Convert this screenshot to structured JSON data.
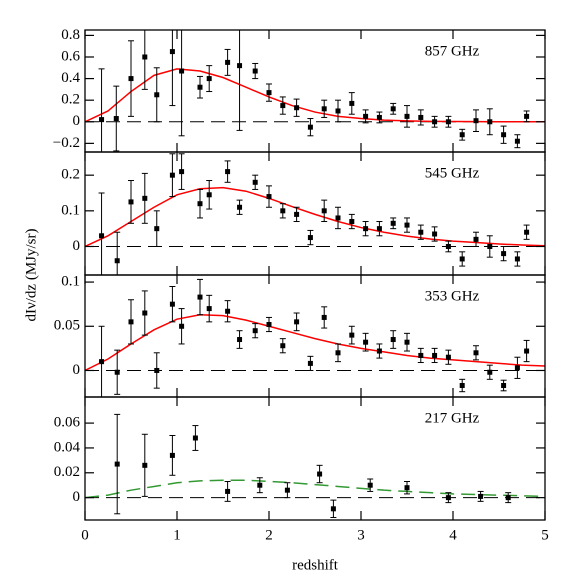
{
  "xlabel": "redshift",
  "ylabel": "dIν/dz (MJy/sr)",
  "chart_data": [
    {
      "type": "scatter",
      "label": "857 GHz",
      "xlim": [
        0,
        5
      ],
      "xticks": [
        0,
        1,
        2,
        3,
        4,
        5
      ],
      "ylim": [
        -0.28,
        0.85
      ],
      "yticks": [
        {
          "value": -0.2,
          "label": "−0.2"
        },
        0,
        0.2,
        0.4,
        0.6,
        0.8
      ],
      "points": {
        "color": "#000000",
        "x": [
          0.18,
          0.34,
          0.5,
          0.65,
          0.78,
          0.95,
          1.05,
          1.25,
          1.35,
          1.55,
          1.68,
          1.85,
          2.0,
          2.15,
          2.3,
          2.45,
          2.6,
          2.75,
          2.9,
          3.05,
          3.2,
          3.35,
          3.5,
          3.65,
          3.8,
          3.95,
          4.1,
          4.25,
          4.4,
          4.55,
          4.7,
          4.8
        ],
        "values": [
          0.02,
          0.03,
          0.4,
          0.6,
          0.25,
          0.65,
          0.47,
          0.32,
          0.4,
          0.55,
          0.52,
          0.47,
          0.27,
          0.15,
          0.13,
          -0.05,
          0.12,
          0.1,
          0.17,
          0.05,
          0.04,
          0.12,
          0.05,
          0.04,
          0.0,
          0.0,
          -0.12,
          0.01,
          0.0,
          -0.12,
          -0.18,
          0.05
        ],
        "errors": [
          0.47,
          0.3,
          0.35,
          0.3,
          0.25,
          0.5,
          0.6,
          0.1,
          0.12,
          0.12,
          0.6,
          0.07,
          0.08,
          0.08,
          0.08,
          0.08,
          0.08,
          0.1,
          0.1,
          0.06,
          0.05,
          0.05,
          0.1,
          0.07,
          0.05,
          0.05,
          0.05,
          0.1,
          0.12,
          0.08,
          0.06,
          0.05
        ]
      },
      "model": {
        "color": "#ff0000",
        "dashed": false,
        "x": [
          0,
          0.25,
          0.5,
          0.75,
          1.0,
          1.25,
          1.5,
          1.75,
          2.0,
          2.25,
          2.5,
          2.75,
          3.0,
          3.25,
          3.5,
          3.75,
          4.0,
          4.25,
          4.5,
          4.75,
          5.0
        ],
        "values": [
          0,
          0.1,
          0.28,
          0.43,
          0.49,
          0.47,
          0.41,
          0.32,
          0.23,
          0.15,
          0.09,
          0.05,
          0.03,
          0.015,
          0.008,
          0.004,
          0.002,
          0.001,
          0,
          0,
          0
        ]
      }
    },
    {
      "type": "scatter",
      "label": "545 GHz",
      "xlim": [
        0,
        5
      ],
      "xticks": [
        0,
        1,
        2,
        3,
        4,
        5
      ],
      "ylim": [
        -0.08,
        0.265
      ],
      "yticks": [
        0,
        0.1,
        0.2
      ],
      "points": {
        "color": "#000000",
        "x": [
          0.18,
          0.35,
          0.5,
          0.65,
          0.78,
          0.95,
          1.05,
          1.25,
          1.35,
          1.55,
          1.68,
          1.85,
          2.0,
          2.15,
          2.3,
          2.45,
          2.6,
          2.75,
          2.9,
          3.05,
          3.2,
          3.35,
          3.5,
          3.65,
          3.8,
          3.95,
          4.1,
          4.25,
          4.4,
          4.55,
          4.7,
          4.8
        ],
        "values": [
          0.03,
          -0.04,
          0.125,
          0.135,
          0.05,
          0.2,
          0.21,
          0.12,
          0.145,
          0.21,
          0.11,
          0.18,
          0.14,
          0.1,
          0.09,
          0.025,
          0.1,
          0.08,
          0.07,
          0.05,
          0.05,
          0.065,
          0.06,
          0.04,
          0.035,
          0.0,
          -0.035,
          0.02,
          0.0,
          -0.02,
          -0.035,
          0.04
        ],
        "errors": [
          0.12,
          0.08,
          0.06,
          0.07,
          0.05,
          0.06,
          0.05,
          0.04,
          0.04,
          0.03,
          0.02,
          0.02,
          0.03,
          0.02,
          0.02,
          0.02,
          0.03,
          0.03,
          0.02,
          0.02,
          0.02,
          0.015,
          0.02,
          0.02,
          0.02,
          0.015,
          0.02,
          0.02,
          0.03,
          0.02,
          0.02,
          0.02
        ]
      },
      "model": {
        "color": "#ff0000",
        "dashed": false,
        "x": [
          0,
          0.25,
          0.5,
          0.75,
          1.0,
          1.25,
          1.5,
          1.75,
          2.0,
          2.25,
          2.5,
          2.75,
          3.0,
          3.25,
          3.5,
          3.75,
          4.0,
          4.25,
          4.5,
          4.75,
          5.0
        ],
        "values": [
          0,
          0.03,
          0.07,
          0.11,
          0.145,
          0.162,
          0.165,
          0.155,
          0.135,
          0.112,
          0.09,
          0.07,
          0.053,
          0.04,
          0.029,
          0.021,
          0.015,
          0.011,
          0.007,
          0.004,
          0.002
        ]
      }
    },
    {
      "type": "scatter",
      "label": "353 GHz",
      "xlim": [
        0,
        5
      ],
      "xticks": [
        0,
        1,
        2,
        3,
        4,
        5
      ],
      "ylim": [
        -0.03,
        0.108
      ],
      "yticks": [
        0,
        0.05,
        0.1
      ],
      "points": {
        "color": "#000000",
        "x": [
          0.18,
          0.35,
          0.5,
          0.65,
          0.78,
          0.95,
          1.05,
          1.25,
          1.35,
          1.55,
          1.68,
          1.85,
          2.0,
          2.15,
          2.3,
          2.45,
          2.6,
          2.75,
          2.9,
          3.05,
          3.2,
          3.35,
          3.5,
          3.65,
          3.8,
          3.95,
          4.1,
          4.25,
          4.4,
          4.55,
          4.7,
          4.8
        ],
        "values": [
          0.01,
          -0.002,
          0.055,
          0.065,
          0.0,
          0.075,
          0.05,
          0.083,
          0.07,
          0.067,
          0.035,
          0.045,
          0.052,
          0.028,
          0.055,
          0.008,
          0.06,
          0.02,
          0.04,
          0.032,
          0.022,
          0.035,
          0.032,
          0.017,
          0.017,
          0.015,
          -0.017,
          0.02,
          -0.002,
          -0.017,
          0.003,
          0.022
        ],
        "errors": [
          0.04,
          0.025,
          0.025,
          0.025,
          0.02,
          0.02,
          0.02,
          0.02,
          0.015,
          0.012,
          0.01,
          0.008,
          0.008,
          0.008,
          0.01,
          0.008,
          0.012,
          0.01,
          0.01,
          0.01,
          0.008,
          0.01,
          0.01,
          0.008,
          0.008,
          0.008,
          0.007,
          0.008,
          0.008,
          0.006,
          0.012,
          0.012
        ]
      },
      "model": {
        "color": "#ff0000",
        "dashed": false,
        "x": [
          0,
          0.25,
          0.5,
          0.75,
          1.0,
          1.25,
          1.5,
          1.75,
          2.0,
          2.25,
          2.5,
          2.75,
          3.0,
          3.25,
          3.5,
          3.75,
          4.0,
          4.25,
          4.5,
          4.75,
          5.0
        ],
        "values": [
          0,
          0.013,
          0.03,
          0.046,
          0.058,
          0.063,
          0.062,
          0.057,
          0.05,
          0.043,
          0.036,
          0.03,
          0.025,
          0.021,
          0.017,
          0.014,
          0.012,
          0.01,
          0.008,
          0.006,
          0.005
        ]
      }
    },
    {
      "type": "scatter",
      "label": "217 GHz",
      "xlim": [
        0,
        5
      ],
      "xticks": [
        0,
        1,
        2,
        3,
        4,
        5
      ],
      "ylim": [
        -0.018,
        0.081
      ],
      "yticks": [
        0,
        0.02,
        0.04,
        0.06
      ],
      "points": {
        "color": "#000000",
        "x": [
          0.35,
          0.65,
          0.95,
          1.2,
          1.55,
          1.9,
          2.2,
          2.55,
          2.7,
          3.1,
          3.5,
          3.95,
          4.3,
          4.6
        ],
        "values": [
          0.027,
          0.026,
          0.034,
          0.048,
          0.005,
          0.01,
          0.006,
          0.019,
          -0.009,
          0.01,
          0.008,
          0.0,
          0.001,
          0.0
        ],
        "errors": [
          0.04,
          0.025,
          0.016,
          0.01,
          0.008,
          0.006,
          0.006,
          0.007,
          0.007,
          0.005,
          0.005,
          0.004,
          0.004,
          0.004
        ]
      },
      "model": {
        "color": "#339933",
        "dashed": true,
        "x": [
          0,
          0.25,
          0.5,
          0.75,
          1.0,
          1.25,
          1.5,
          1.75,
          2.0,
          2.25,
          2.5,
          2.75,
          3.0,
          3.25,
          3.5,
          3.75,
          4.0,
          4.25,
          4.5,
          4.75,
          5.0
        ],
        "values": [
          0,
          0.002,
          0.006,
          0.009,
          0.012,
          0.0135,
          0.014,
          0.014,
          0.013,
          0.012,
          0.0105,
          0.009,
          0.0075,
          0.006,
          0.005,
          0.004,
          0.003,
          0.0025,
          0.002,
          0.0015,
          0.001
        ]
      }
    }
  ]
}
